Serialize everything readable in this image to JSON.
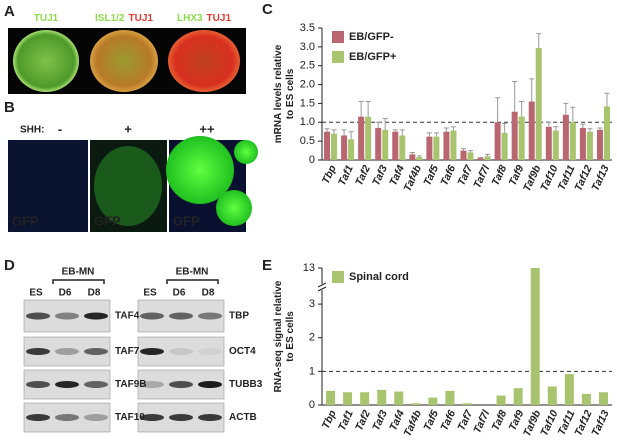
{
  "panel_labels": [
    "A",
    "B",
    "C",
    "D",
    "E"
  ],
  "panel_a": {
    "images": [
      [
        "TUJ1"
      ],
      [
        "ISL1/2",
        "TUJ1"
      ],
      [
        "LHX3",
        "TUJ1"
      ]
    ]
  },
  "panel_b": {
    "condition_label": "SHH:",
    "conditions": [
      "-",
      "+",
      "++"
    ],
    "image_labels": [
      "GFP",
      "GFP",
      "GFP"
    ]
  },
  "panel_d": {
    "blots": [
      {
        "group": "EB-MN",
        "lanes": [
          "ES",
          "D6",
          "D8"
        ],
        "rows": [
          "TAF4",
          "TAF7",
          "TAF9B",
          "TAF10"
        ]
      },
      {
        "group": "EB-MN",
        "lanes": [
          "ES",
          "D6",
          "D8"
        ],
        "rows": [
          "TBP",
          "OCT4",
          "TUBB3",
          "ACTB"
        ]
      }
    ]
  },
  "chart_data": [
    {
      "type": "bar",
      "y_label": [
        "mRNA levels relative",
        "to ES cells"
      ],
      "categories": [
        "Tbp",
        "Taf1",
        "Taf2",
        "Taf3",
        "Taf4",
        "Taf4b",
        "Taf5",
        "Taf6",
        "Taf7",
        "Taf7l",
        "Taf8",
        "Taf9",
        "Taf9b",
        "Taf10",
        "Taf11",
        "Taf12",
        "Taf13"
      ],
      "series": [
        {
          "name": "EB/GFP-",
          "color": "#b96670",
          "values": [
            0.75,
            0.65,
            1.15,
            0.85,
            0.75,
            0.15,
            0.62,
            0.75,
            0.25,
            0.05,
            1.0,
            1.28,
            1.55,
            0.88,
            1.2,
            0.85,
            0.8
          ],
          "errors": [
            0.08,
            0.15,
            0.4,
            0.15,
            0.05,
            0.05,
            0.1,
            0.1,
            0.05,
            0.02,
            0.65,
            0.8,
            0.6,
            0.12,
            0.3,
            0.1,
            0.05
          ]
        },
        {
          "name": "EB/GFP+",
          "color": "#a9c46e",
          "values": [
            0.7,
            0.55,
            1.15,
            0.8,
            0.65,
            0.08,
            0.62,
            0.78,
            0.2,
            0.1,
            0.72,
            1.15,
            2.97,
            0.78,
            1.0,
            0.75,
            1.42
          ],
          "errors": [
            0.1,
            0.2,
            0.4,
            0.3,
            0.15,
            0.03,
            0.1,
            0.1,
            0.05,
            0.05,
            0.25,
            0.4,
            0.38,
            0.1,
            0.4,
            0.08,
            0.35
          ]
        }
      ],
      "ylim": [
        0,
        3.5
      ],
      "yticks": [
        0,
        0.5,
        {
          "value": 1,
          "label": "1.0"
        },
        {
          "value": 1.5,
          "label": "1.5"
        },
        {
          "value": 2,
          "label": "2.0"
        },
        {
          "value": 2.5,
          "label": "2.5"
        },
        {
          "value": 3,
          "label": "3.0"
        },
        {
          "value": 3.5,
          "label": "3.5"
        }
      ],
      "reference_line": 1,
      "legend": "top-left"
    },
    {
      "type": "bar",
      "y_label": [
        "RNA-seq signal relative",
        "to ES cells"
      ],
      "categories": [
        "Tbp",
        "Taf1",
        "Taf2",
        "Taf3",
        "Taf4",
        "Taf4b",
        "Taf5",
        "Taf6",
        "Taf7",
        "Taf7l",
        "Taf8",
        "Taf9",
        "Taf9b",
        "Taf10",
        "Taf11",
        "Taf12",
        "Taf13"
      ],
      "series": [
        {
          "name": "Spinal cord",
          "color": "#a9c46e",
          "values": [
            0.42,
            0.38,
            0.38,
            0.45,
            0.4,
            0.05,
            0.22,
            0.42,
            0.05,
            0,
            0.28,
            0.5,
            13,
            0.55,
            0.92,
            0.33,
            0.38
          ]
        }
      ],
      "ylim": [
        0,
        3.3
      ],
      "yticks": [
        0,
        1,
        2,
        3,
        13
      ],
      "axis_break": true,
      "reference_line": 1,
      "legend": "top-left"
    }
  ]
}
